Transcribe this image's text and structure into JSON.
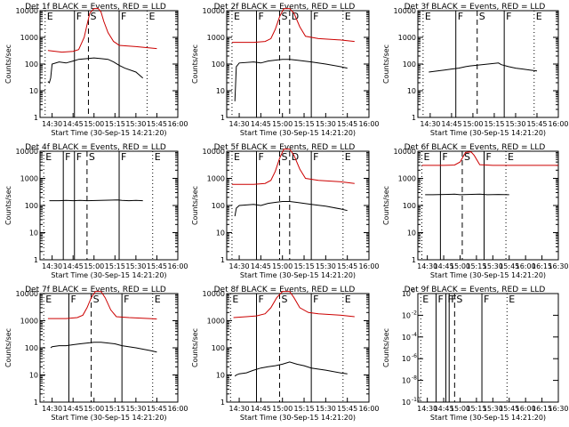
{
  "chart_data": [
    {
      "type": "line",
      "title": "Det  1f  BLACK = Events, RED = LLD",
      "xlabel": "Start Time (30-Sep-15 14:21:20)",
      "ylabel": "Counts/sec",
      "ylog": true,
      "ylim": [
        1,
        10000
      ],
      "yticks": [
        "1",
        "10",
        "100",
        "1000",
        "10000"
      ],
      "xlim": [
        "14:21:20",
        "16:00"
      ],
      "xticks": [
        "14:30",
        "14:45",
        "15:00",
        "15:15",
        "15:30",
        "15:45",
        "16:00"
      ],
      "colors": {
        "events": "#000000",
        "lld": "#cc0000"
      },
      "series": [
        {
          "name": "RED = LLD",
          "color": "#cc0000",
          "x": [
            "14:27",
            "14:37",
            "14:45",
            "14:49",
            "14:53",
            "14:55",
            "14:57",
            "15:00",
            "15:03",
            "15:05",
            "15:07",
            "15:10",
            "15:14",
            "15:16",
            "15:18",
            "15:30",
            "15:40",
            "15:45"
          ],
          "y": [
            320,
            280,
            300,
            350,
            1000,
            3000,
            8000,
            12000,
            12000,
            9000,
            4000,
            1500,
            700,
            600,
            500,
            450,
            400,
            380
          ]
        },
        {
          "name": "BLACK = Events",
          "color": "#000000",
          "x": [
            "14:27",
            "14:28",
            "14:29",
            "14:30",
            "14:35",
            "14:40",
            "14:45",
            "14:49",
            "14:55",
            "15:00",
            "15:05",
            "15:10",
            "15:14",
            "15:18",
            "15:22",
            "15:30",
            "15:35"
          ],
          "y": [
            22,
            20,
            30,
            100,
            120,
            110,
            130,
            150,
            160,
            170,
            160,
            150,
            120,
            90,
            70,
            50,
            30
          ]
        }
      ],
      "markers": [
        {
          "label": "E",
          "time": "14:25"
        },
        {
          "label": "F",
          "time": "14:46"
        },
        {
          "label": "S",
          "time": "14:56"
        },
        {
          "label": "F",
          "time": "15:18"
        },
        {
          "label": "E",
          "time": "15:38"
        }
      ]
    },
    {
      "type": "line",
      "title": "Det  2f  BLACK = Events, RED = LLD",
      "xlabel": "Start Time (30-Sep-15 14:21:20)",
      "ylabel": "Counts/sec",
      "ylog": true,
      "ylim": [
        1,
        10000
      ],
      "yticks": [
        "1",
        "10",
        "100",
        "1000",
        "10000"
      ],
      "xlim": [
        "14:21:20",
        "16:00"
      ],
      "xticks": [
        "14:30",
        "14:45",
        "15:00",
        "15:15",
        "15:30",
        "15:45",
        "16:00"
      ],
      "series": [
        {
          "name": "RED = LLD",
          "color": "#cc0000",
          "x": [
            "14:25",
            "14:40",
            "14:48",
            "14:52",
            "14:55",
            "14:58",
            "15:01",
            "15:05",
            "15:08",
            "15:12",
            "15:16",
            "15:25",
            "15:40",
            "15:50"
          ],
          "y": [
            650,
            650,
            700,
            900,
            2000,
            6000,
            12000,
            12000,
            8000,
            2500,
            1100,
            900,
            800,
            700
          ]
        },
        {
          "name": "BLACK = Events",
          "color": "#000000",
          "x": [
            "14:27",
            "14:28",
            "14:30",
            "14:40",
            "14:45",
            "14:50",
            "14:55",
            "15:00",
            "15:05",
            "15:10",
            "15:15",
            "15:20",
            "15:30",
            "15:40",
            "15:45"
          ],
          "y": [
            4,
            80,
            110,
            120,
            110,
            130,
            140,
            150,
            150,
            140,
            130,
            120,
            100,
            80,
            70
          ]
        }
      ],
      "markers": [
        {
          "label": "E",
          "time": "14:25"
        },
        {
          "label": "F",
          "time": "14:42"
        },
        {
          "label": "S",
          "time": "14:58"
        },
        {
          "label": "D",
          "time": "15:05"
        },
        {
          "label": "F",
          "time": "15:20"
        },
        {
          "label": "E",
          "time": "15:42"
        }
      ]
    },
    {
      "type": "line",
      "title": "Det  3f  BLACK = Events, RED = LLD",
      "xlabel": "Start Time (30-Sep-15 14:21:20)",
      "ylabel": "Counts/sec",
      "ylog": true,
      "ylim": [
        1,
        10000
      ],
      "yticks": [
        "1",
        "10",
        "100",
        "1000",
        "10000"
      ],
      "xlim": [
        "14:21:20",
        "16:00"
      ],
      "xticks": [
        "14:30",
        "14:45",
        "15:00",
        "15:15",
        "15:30",
        "15:45",
        "16:00"
      ],
      "series": [
        {
          "name": "BLACK = Events",
          "color": "#000000",
          "x": [
            "14:29",
            "14:35",
            "14:40",
            "14:45",
            "14:50",
            "14:55",
            "14:58",
            "15:18",
            "15:20",
            "15:25",
            "15:30",
            "15:35",
            "15:40",
            "15:45"
          ],
          "y": [
            50,
            55,
            60,
            65,
            70,
            80,
            85,
            110,
            95,
            80,
            70,
            65,
            60,
            55
          ]
        }
      ],
      "markers": [
        {
          "label": "E",
          "time": "14:25"
        },
        {
          "label": "F",
          "time": "14:48"
        },
        {
          "label": "S",
          "time": "15:03"
        },
        {
          "label": "F",
          "time": "15:22"
        },
        {
          "label": "E",
          "time": "15:43"
        }
      ]
    },
    {
      "type": "line",
      "title": "Det  4f  BLACK = Events, RED = LLD",
      "xlabel": "Start Time (30-Sep-15 14:21:20)",
      "ylabel": "Counts/sec",
      "ylog": true,
      "ylim": [
        1,
        10000
      ],
      "yticks": [
        "1",
        "10",
        "100",
        "1000",
        "10000"
      ],
      "xlim": [
        "14:21:20",
        "16:00"
      ],
      "xticks": [
        "14:30",
        "14:45",
        "15:00",
        "15:15",
        "15:30",
        "15:45",
        "16:00"
      ],
      "series": [
        {
          "name": "BLACK = Events",
          "color": "#000000",
          "x": [
            "14:28",
            "14:35",
            "14:40",
            "14:45",
            "14:50",
            "14:55",
            "15:17",
            "15:20",
            "15:25",
            "15:30",
            "15:35"
          ],
          "y": [
            150,
            150,
            155,
            150,
            155,
            150,
            160,
            155,
            150,
            155,
            150
          ]
        }
      ],
      "markers": [
        {
          "label": "E",
          "time": "14:24"
        },
        {
          "label": "F",
          "time": "14:38"
        },
        {
          "label": "F",
          "time": "14:46"
        },
        {
          "label": "S",
          "time": "14:55"
        },
        {
          "label": "F",
          "time": "15:18"
        },
        {
          "label": "E",
          "time": "15:42"
        }
      ]
    },
    {
      "type": "line",
      "title": "Det  5f  BLACK = Events, RED = LLD",
      "xlabel": "Start Time (30-Sep-15 14:21:20)",
      "ylabel": "Counts/sec",
      "ylog": true,
      "ylim": [
        1,
        10000
      ],
      "yticks": [
        "1",
        "10",
        "100",
        "1000",
        "10000"
      ],
      "xlim": [
        "14:21:20",
        "16:00"
      ],
      "xticks": [
        "14:30",
        "14:45",
        "15:00",
        "15:15",
        "15:30",
        "15:45",
        "16:00"
      ],
      "series": [
        {
          "name": "RED = LLD",
          "color": "#cc0000",
          "x": [
            "14:25",
            "14:40",
            "14:48",
            "14:52",
            "14:55",
            "14:58",
            "15:01",
            "15:05",
            "15:08",
            "15:12",
            "15:16",
            "15:25",
            "15:40",
            "15:50"
          ],
          "y": [
            600,
            600,
            650,
            850,
            1800,
            5500,
            12000,
            12000,
            7000,
            2200,
            1000,
            850,
            750,
            650
          ]
        },
        {
          "name": "BLACK = Events",
          "color": "#000000",
          "x": [
            "14:27",
            "14:28",
            "14:30",
            "14:40",
            "14:45",
            "14:50",
            "14:55",
            "15:00",
            "15:05",
            "15:10",
            "15:15",
            "15:20",
            "15:30",
            "15:40",
            "15:45"
          ],
          "y": [
            40,
            80,
            100,
            110,
            100,
            120,
            130,
            140,
            140,
            130,
            120,
            110,
            95,
            75,
            65
          ]
        }
      ],
      "markers": [
        {
          "label": "E",
          "time": "14:25"
        },
        {
          "label": "F",
          "time": "14:42"
        },
        {
          "label": "S",
          "time": "14:58"
        },
        {
          "label": "D",
          "time": "15:05"
        },
        {
          "label": "F",
          "time": "15:20"
        },
        {
          "label": "E",
          "time": "15:42"
        }
      ]
    },
    {
      "type": "line",
      "title": "Det  6f  BLACK = Events, RED = LLD",
      "xlabel": "Start Time (30-Sep-15 14:21:20)",
      "ylabel": "Counts/sec",
      "ylog": true,
      "ylim": [
        1,
        10000
      ],
      "yticks": [
        "1",
        "10",
        "100",
        "1000",
        "10000"
      ],
      "xlim": [
        "14:21:20",
        "16:30"
      ],
      "xticks": [
        "14:30",
        "14:45",
        "15:00",
        "15:15",
        "15:30",
        "15:45",
        "16:00",
        "16:15",
        "16:30"
      ],
      "series": [
        {
          "name": "RED = LLD",
          "color": "#cc0000",
          "x": [
            "14:25",
            "14:45",
            "14:55",
            "15:00",
            "15:05",
            "15:10",
            "15:13",
            "15:18",
            "15:30",
            "16:00",
            "16:30"
          ],
          "y": [
            3000,
            3000,
            3100,
            4000,
            9000,
            9500,
            7000,
            3200,
            3000,
            3000,
            3000
          ]
        },
        {
          "name": "BLACK = Events",
          "color": "#000000",
          "x": [
            "14:28",
            "14:35",
            "14:45",
            "14:55",
            "15:00",
            "15:18",
            "15:25",
            "15:35",
            "15:45"
          ],
          "y": [
            250,
            250,
            255,
            260,
            250,
            260,
            250,
            255,
            250
          ]
        }
      ],
      "markers": [
        {
          "label": "E",
          "time": "14:25"
        },
        {
          "label": "F",
          "time": "14:42"
        },
        {
          "label": "S",
          "time": "15:02"
        },
        {
          "label": "F",
          "time": "15:22"
        },
        {
          "label": "E",
          "time": "15:42"
        }
      ]
    },
    {
      "type": "line",
      "title": "Det  7f  BLACK = Events, RED = LLD",
      "xlabel": "Start Time (30-Sep-15 14:21:20)",
      "ylabel": "Counts/sec",
      "ylog": true,
      "ylim": [
        1,
        10000
      ],
      "yticks": [
        "1",
        "10",
        "100",
        "1000",
        "10000"
      ],
      "xlim": [
        "14:21:20",
        "16:00"
      ],
      "xticks": [
        "14:30",
        "14:45",
        "15:00",
        "15:15",
        "15:30",
        "15:45",
        "16:00"
      ],
      "series": [
        {
          "name": "RED = LLD",
          "color": "#cc0000",
          "x": [
            "14:27",
            "14:40",
            "14:48",
            "14:52",
            "14:55",
            "14:58",
            "15:01",
            "15:05",
            "15:08",
            "15:12",
            "15:16",
            "15:25",
            "15:40",
            "15:45"
          ],
          "y": [
            1200,
            1200,
            1300,
            1600,
            3000,
            7000,
            12000,
            12000,
            7000,
            2500,
            1400,
            1300,
            1200,
            1150
          ]
        },
        {
          "name": "BLACK = Events",
          "color": "#000000",
          "x": [
            "14:29",
            "14:30",
            "14:35",
            "14:40",
            "14:45",
            "14:50",
            "14:55",
            "15:00",
            "15:05",
            "15:10",
            "15:15",
            "15:20",
            "15:30",
            "15:40",
            "15:45"
          ],
          "y": [
            100,
            110,
            120,
            120,
            130,
            140,
            150,
            160,
            160,
            150,
            140,
            120,
            100,
            80,
            70
          ]
        }
      ],
      "markers": [
        {
          "label": "E",
          "time": "14:24"
        },
        {
          "label": "F",
          "time": "14:42"
        },
        {
          "label": "S",
          "time": "14:58"
        },
        {
          "label": "F",
          "time": "15:20"
        },
        {
          "label": "E",
          "time": "15:42"
        }
      ]
    },
    {
      "type": "line",
      "title": "Det  8f  BLACK = Events, RED = LLD",
      "xlabel": "Start Time (30-Sep-15 14:21:20)",
      "ylabel": "Counts/sec",
      "ylog": true,
      "ylim": [
        1,
        10000
      ],
      "yticks": [
        "1",
        "10",
        "100",
        "1000",
        "10000"
      ],
      "xlim": [
        "14:21:20",
        "16:00"
      ],
      "xticks": [
        "14:30",
        "14:45",
        "15:00",
        "15:15",
        "15:30",
        "15:45",
        "16:00"
      ],
      "series": [
        {
          "name": "RED = LLD",
          "color": "#cc0000",
          "x": [
            "14:26",
            "14:35",
            "14:42",
            "14:48",
            "14:52",
            "14:56",
            "15:00",
            "15:05",
            "15:08",
            "15:12",
            "15:18",
            "15:25",
            "15:40",
            "15:50"
          ],
          "y": [
            1300,
            1400,
            1500,
            1800,
            3000,
            7000,
            12000,
            12000,
            7000,
            3000,
            2000,
            1800,
            1600,
            1400
          ]
        },
        {
          "name": "BLACK = Events",
          "color": "#000000",
          "x": [
            "14:27",
            "14:28",
            "14:30",
            "14:35",
            "14:40",
            "14:45",
            "14:50",
            "14:55",
            "15:00",
            "15:05",
            "15:10",
            "15:15",
            "15:20",
            "15:30",
            "15:40",
            "15:45"
          ],
          "y": [
            9,
            10,
            11,
            12,
            15,
            18,
            20,
            22,
            25,
            30,
            25,
            22,
            18,
            15,
            12,
            11
          ]
        }
      ],
      "markers": [
        {
          "label": "E",
          "time": "14:24"
        },
        {
          "label": "F",
          "time": "14:42"
        },
        {
          "label": "S",
          "time": "14:58"
        },
        {
          "label": "F",
          "time": "15:20"
        },
        {
          "label": "E",
          "time": "15:42"
        }
      ]
    },
    {
      "type": "line",
      "title": "Det  9f  BLACK = Events, RED = LLD",
      "xlabel": "Start Time (30-Sep-15 14:21:20)",
      "ylabel": "Counts/sec",
      "ylog": true,
      "ylim": [
        1,
        1e-10
      ],
      "yticks_special": true,
      "xlim": [
        "14:21:20",
        "16:30"
      ],
      "xticks": [
        "14:30",
        "14:45",
        "15:00",
        "15:15",
        "15:30",
        "15:45",
        "16:00",
        "16:15",
        "16:30"
      ],
      "series": [],
      "markers": [
        {
          "label": "E",
          "time": "14:24"
        },
        {
          "label": "F",
          "time": "14:38"
        },
        {
          "label": "F",
          "time": "14:47"
        },
        {
          "label": "F",
          "time": "14:50"
        },
        {
          "label": "S",
          "time": "14:55"
        },
        {
          "label": "F",
          "time": "15:20"
        },
        {
          "label": "E",
          "time": "15:43"
        }
      ]
    }
  ]
}
